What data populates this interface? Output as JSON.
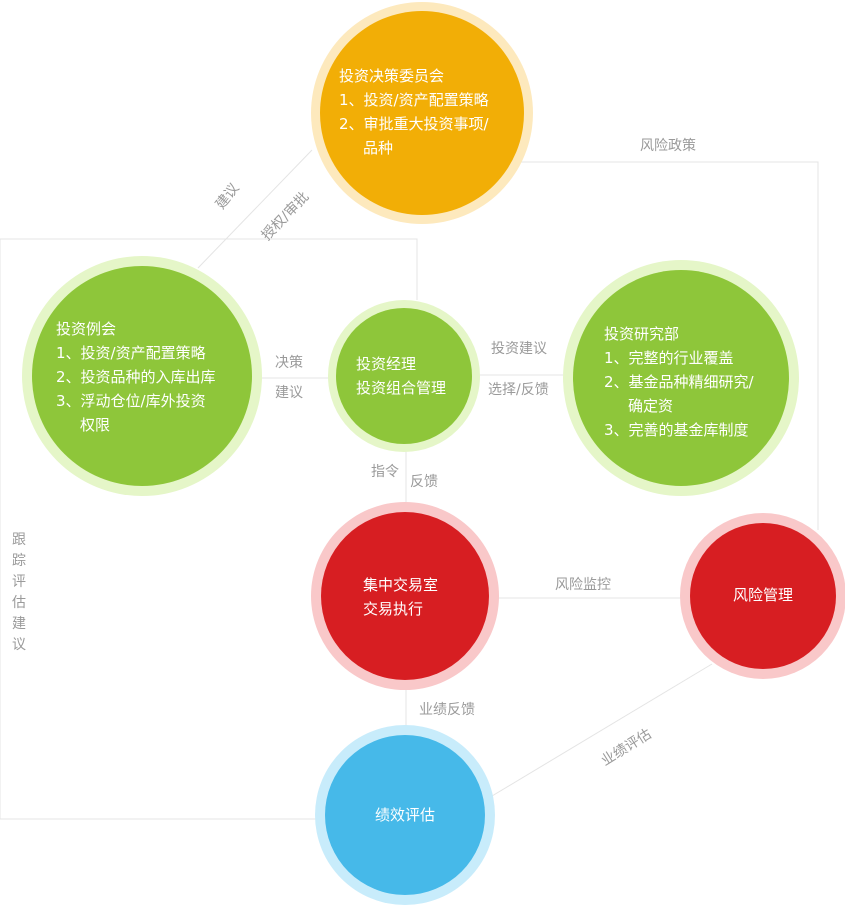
{
  "nodes": {
    "committee": {
      "title": "投资决策委员会",
      "items": [
        "1、投资/资产配置策略",
        "2、审批重大投资事项/",
        "品种"
      ]
    },
    "regular_meeting": {
      "title": "投资例会",
      "items": [
        "1、投资/资产配置策略",
        "2、投资品种的入库出库",
        "3、浮动仓位/库外投资",
        "权限"
      ]
    },
    "manager": {
      "lines": [
        "投资经理",
        "投资组合管理"
      ]
    },
    "research": {
      "title": "投资研究部",
      "items": [
        "1、完整的行业覆盖",
        "2、基金品种精细研究/",
        "确定资",
        "3、完善的基金库制度"
      ]
    },
    "trading": {
      "lines": [
        "集中交易室",
        "交易执行"
      ]
    },
    "risk": {
      "lines": [
        "风险管理"
      ]
    },
    "evaluation": {
      "lines": [
        "绩效评估"
      ]
    }
  },
  "edge_labels": {
    "suggest": "建议",
    "authorize": "授权/审批",
    "risk_policy": "风险政策",
    "decision": "决策",
    "advice": "建议",
    "invest_advice": "投资建议",
    "select_feedback": "选择/反馈",
    "instruction": "指令",
    "feedback": "反馈",
    "risk_monitor": "风险监控",
    "perf_feedback": "业绩反馈",
    "perf_eval": "业绩评估",
    "tracking": "跟踪评估建议"
  },
  "colors": {
    "orange": "#f2ae06",
    "orange_ring": "#fde9bd",
    "green": "#8ec63a",
    "green_ring": "#e5f6c8",
    "red": "#d71e22",
    "red_ring": "#f9c8c9",
    "blue": "#46b9e9",
    "blue_ring": "#c8ecfb",
    "line": "#e4e4e4",
    "label": "#9a9a9a"
  }
}
